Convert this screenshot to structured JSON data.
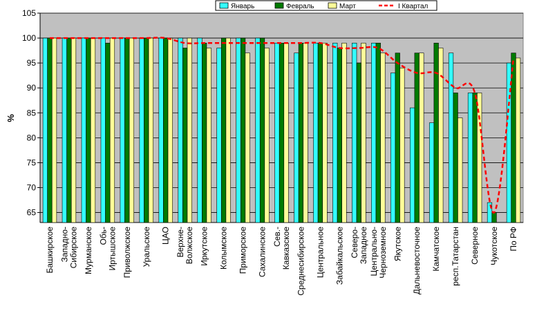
{
  "chart_data": {
    "type": "bar",
    "title": "",
    "ylabel": "%",
    "xlabel": "",
    "ylim": [
      63,
      105
    ],
    "yticks": [
      65,
      70,
      75,
      80,
      85,
      90,
      95,
      100,
      105
    ],
    "grid": "horizontal",
    "legend_position": "top-right",
    "categories": [
      [
        "Башкирское"
      ],
      [
        "Западно-",
        "Сибирское"
      ],
      [
        "Мурманское"
      ],
      [
        "Обь-",
        "Иртышское"
      ],
      [
        "Приволжское"
      ],
      [
        "Уральское"
      ],
      [
        "ЦАО"
      ],
      [
        "Верхне-",
        "Волжское"
      ],
      [
        "Иркутское"
      ],
      [
        "Колымское"
      ],
      [
        "Приморское"
      ],
      [
        "Сахалинское"
      ],
      [
        "Сев.-",
        "Кавказское"
      ],
      [
        "Среднесибирское"
      ],
      [
        "Центральное"
      ],
      [
        "Забайкальское"
      ],
      [
        "Северо-",
        "Западное"
      ],
      [
        "Центрально-",
        "Черноземное"
      ],
      [
        "Якутское"
      ],
      [
        "Дальневосточное"
      ],
      [
        "Камчатское"
      ],
      [
        "респ.Татарстан"
      ],
      [
        "Северное"
      ],
      [
        "Чукотское"
      ],
      [
        "По РФ"
      ]
    ],
    "series": [
      {
        "name": "Январь",
        "type": "bar",
        "color": "#33ffff",
        "values": [
          100,
          100,
          100,
          100,
          100,
          100,
          100,
          100,
          100,
          98,
          100,
          100,
          99,
          97,
          99,
          99,
          99,
          99,
          93,
          86,
          83,
          97,
          89,
          67,
          95
        ]
      },
      {
        "name": "Февраль",
        "type": "bar",
        "color": "#007a00",
        "values": [
          100,
          100,
          100,
          99,
          100,
          100,
          100,
          98,
          99,
          100,
          100,
          100,
          99,
          99,
          99,
          98,
          95,
          99,
          97,
          97,
          99,
          89,
          89,
          65,
          97
        ]
      },
      {
        "name": "Март",
        "type": "bar",
        "color": "#ffff99",
        "values": [
          100,
          100,
          100,
          100,
          100,
          100,
          100,
          100,
          98,
          100,
          97,
          98,
          99,
          99,
          99,
          99,
          99,
          97,
          94,
          97,
          98,
          84,
          89,
          63,
          96
        ]
      },
      {
        "name": "I Квартал",
        "type": "line",
        "color": "#ff0000",
        "values": [
          100,
          100,
          100,
          100,
          100,
          100,
          100,
          99,
          99,
          99,
          99,
          99,
          99,
          99,
          99,
          98,
          98,
          98,
          95,
          93,
          93,
          90,
          89,
          65,
          96
        ]
      }
    ]
  }
}
